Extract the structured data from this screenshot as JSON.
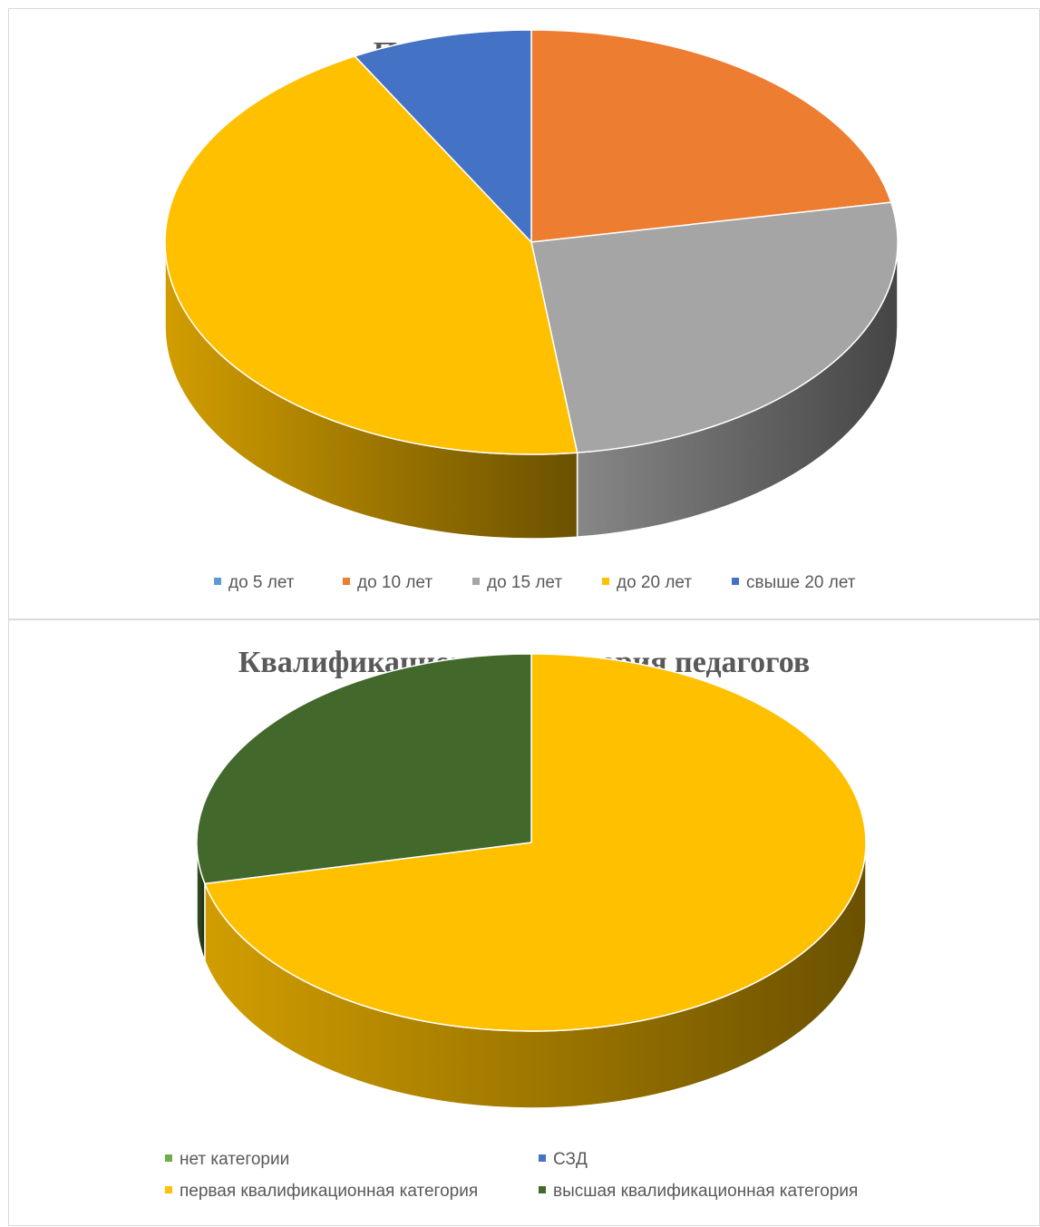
{
  "chart_data": [
    {
      "type": "pie",
      "title": "Педагогический стаж",
      "categories": [
        "до 5 лет",
        "до 10 лет",
        "до 15 лет",
        "до 20 лет",
        "свыше 20 лет"
      ],
      "values": [
        0,
        22,
        26,
        44,
        8
      ],
      "colors": [
        "#5b9bd5",
        "#ed7d31",
        "#a5a5a5",
        "#ffc000",
        "#4472c4"
      ],
      "legend": "bottom"
    },
    {
      "type": "pie",
      "title": "Квалификационная категория педагогов",
      "categories": [
        "нет категории",
        "СЗД",
        "первая квалификационная категория",
        "высшая квалификационная категория"
      ],
      "values": [
        0,
        0,
        71.5,
        28.5
      ],
      "colors": [
        "#70ad47",
        "#4472c4",
        "#ffc000",
        "#43682b"
      ],
      "legend": "bottom"
    }
  ]
}
